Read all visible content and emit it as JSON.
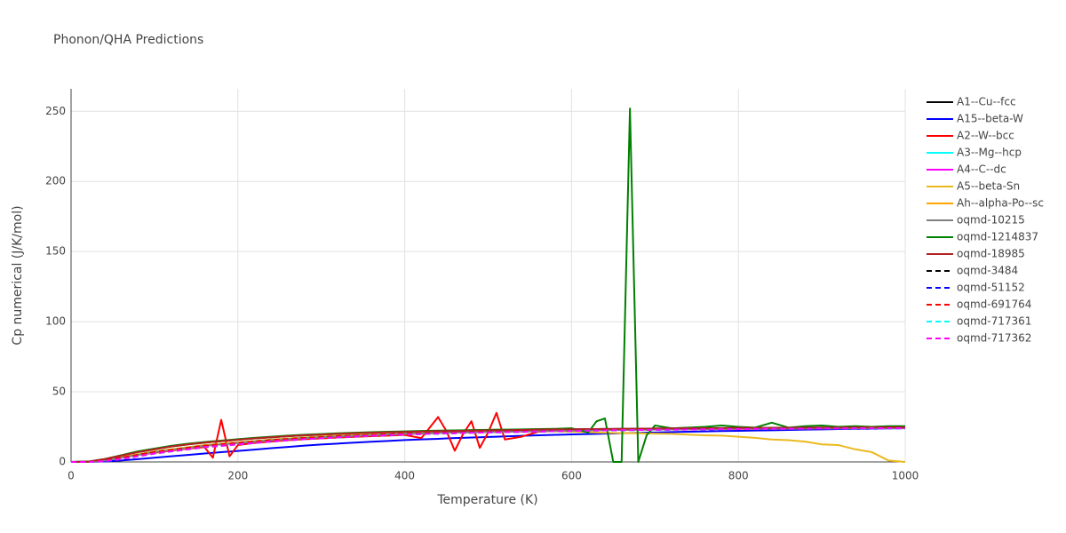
{
  "chart_data": {
    "type": "line",
    "title": "Phonon/QHA Predictions",
    "x_label": "Temperature (K)",
    "y_label": "Cp numerical (J/K/mol)",
    "xlim": [
      0,
      1000
    ],
    "ylim": [
      0,
      266
    ],
    "xticks": [
      0,
      200,
      400,
      600,
      800,
      1000
    ],
    "yticks": [
      0,
      50,
      100,
      150,
      200,
      250
    ],
    "grid": true,
    "x": [
      0,
      20,
      40,
      60,
      80,
      100,
      120,
      140,
      160,
      170,
      180,
      190,
      200,
      220,
      240,
      260,
      280,
      300,
      320,
      340,
      360,
      380,
      400,
      420,
      440,
      450,
      460,
      470,
      480,
      490,
      500,
      510,
      520,
      540,
      560,
      580,
      600,
      620,
      630,
      640,
      650,
      660,
      670,
      680,
      690,
      700,
      720,
      740,
      760,
      780,
      800,
      820,
      840,
      860,
      880,
      900,
      920,
      940,
      960,
      980,
      1000
    ],
    "series": [
      {
        "name": "A1--Cu--fcc",
        "color": "#000000",
        "dash": false,
        "values": [
          0,
          0.2,
          2,
          4.5,
          7,
          9,
          11,
          12.5,
          13.8,
          14.3,
          14.8,
          15.3,
          15.8,
          16.8,
          17.6,
          18.4,
          19,
          19.5,
          20,
          20.4,
          20.8,
          21.1,
          21.4,
          21.7,
          21.9,
          22,
          22.1,
          22.2,
          22.3,
          22.4,
          22.5,
          22.6,
          22.6,
          22.8,
          23,
          23.1,
          23.2,
          23.4,
          23.4,
          23.5,
          23.5,
          23.6,
          23.6,
          23.7,
          23.7,
          23.8,
          23.9,
          24,
          24,
          24.1,
          24.2,
          24.2,
          24.3,
          24.4,
          24.4,
          24.5,
          24.5,
          24.6,
          24.6,
          24.7,
          24.7
        ]
      },
      {
        "name": "A15--beta-W",
        "color": "#0000ff",
        "dash": false,
        "values": [
          0,
          0,
          0.3,
          1,
          2,
          3,
          4,
          5,
          6,
          6.5,
          7,
          7.4,
          7.8,
          8.8,
          9.8,
          10.7,
          11.6,
          12.4,
          13.1,
          13.8,
          14.4,
          15,
          15.6,
          16.1,
          16.5,
          16.8,
          17,
          17.2,
          17.4,
          17.6,
          17.8,
          18,
          18.2,
          18.6,
          19,
          19.3,
          19.6,
          19.9,
          20,
          20.2,
          20.3,
          20.5,
          20.6,
          20.7,
          20.9,
          21,
          21.3,
          21.5,
          21.8,
          22,
          22.2,
          22.4,
          22.6,
          22.8,
          23,
          23.2,
          23.4,
          23.6,
          23.7,
          23.9,
          24
        ]
      },
      {
        "name": "A2--W--bcc",
        "color": "#ff0000",
        "dash": false,
        "values": [
          0,
          0,
          1,
          3,
          5,
          6.5,
          8,
          9.5,
          10.5,
          3,
          30,
          4,
          12,
          13.5,
          14.5,
          15.5,
          16.2,
          16.8,
          17.4,
          17.9,
          18.4,
          18.8,
          19.2,
          17,
          32,
          22,
          8,
          20,
          29,
          10,
          21,
          35,
          16,
          18,
          21.5,
          22,
          22.5,
          23,
          23,
          23.1,
          23.2,
          23.2,
          23.3,
          23.3,
          23.4,
          23.4,
          23.5,
          23.6,
          23.7,
          23.8,
          23.9,
          24,
          24,
          24.1,
          24.2,
          24.2,
          24.3,
          24.3,
          24.4,
          24.4,
          24.5
        ]
      },
      {
        "name": "A3--Mg--hcp",
        "color": "#00ffff",
        "dash": false,
        "values": [
          0,
          0,
          1,
          3,
          5,
          7,
          8.5,
          10,
          11.5,
          12,
          12.5,
          13,
          13.5,
          14.5,
          15.5,
          16.3,
          17,
          17.6,
          18.2,
          18.7,
          19.2,
          19.6,
          20,
          20.3,
          20.6,
          20.8,
          20.9,
          21,
          21.1,
          21.2,
          21.3,
          21.4,
          21.5,
          21.7,
          21.9,
          22.1,
          22.3,
          22.5,
          22.6,
          22.7,
          22.8,
          22.8,
          22.9,
          23,
          23,
          23.1,
          23.2,
          23.3,
          23.4,
          23.5,
          23.6,
          23.7,
          23.8,
          23.8,
          23.9,
          24,
          24,
          24.1,
          24.1,
          24.2,
          24.2
        ]
      },
      {
        "name": "A4--C--dc",
        "color": "#ff00ff",
        "dash": false,
        "values": [
          0,
          0,
          1,
          3,
          5,
          7,
          8.5,
          10,
          11.5,
          12,
          12.5,
          13,
          13.5,
          14.5,
          15.5,
          16.3,
          17,
          17.6,
          18.2,
          18.7,
          19.2,
          19.6,
          20,
          20.3,
          20.6,
          20.8,
          20.9,
          21,
          21.1,
          21.2,
          21.3,
          21.4,
          21.5,
          21.7,
          21.9,
          22.1,
          22.3,
          22.5,
          22.6,
          22.7,
          22.8,
          22.8,
          22.9,
          23,
          23,
          23.1,
          23.2,
          23.3,
          23.4,
          23.5,
          23.6,
          23.7,
          23.8,
          23.8,
          23.9,
          24,
          24,
          24.1,
          24.1,
          24.2,
          24.2
        ]
      },
      {
        "name": "A5--beta-Sn",
        "color": "#ebb91e",
        "dash": false,
        "values": [
          0,
          0,
          1.5,
          3.5,
          5.5,
          7.5,
          9,
          10.5,
          12,
          12.5,
          13,
          13.5,
          14,
          15,
          16,
          16.8,
          17.5,
          18.1,
          18.7,
          19.2,
          19.6,
          20,
          20.4,
          20.7,
          21,
          21.1,
          21.2,
          21.3,
          21.4,
          21.5,
          21.6,
          21.7,
          21.8,
          21.9,
          22,
          21.8,
          21.5,
          21.2,
          21,
          20.8,
          20.7,
          20.6,
          20.5,
          20.4,
          20.3,
          20.2,
          20,
          19.5,
          19,
          18.8,
          18,
          17.2,
          16,
          15.5,
          14.5,
          12.5,
          12,
          9,
          7,
          1,
          0
        ]
      },
      {
        "name": "Ah--alpha-Po--sc",
        "color": "#ffa500",
        "dash": false,
        "values": [
          0,
          0,
          1,
          3,
          5,
          7,
          8.5,
          10,
          11.5,
          12,
          12.5,
          13,
          13.5,
          14.5,
          15.5,
          16.3,
          17,
          17.6,
          18.2,
          18.7,
          19.2,
          19.6,
          20,
          20.3,
          20.6,
          20.8,
          20.9,
          21,
          21.1,
          21.2,
          21.3,
          21.4,
          21.5,
          21.7,
          21.9,
          22.1,
          22.3,
          22.5,
          22.6,
          22.7,
          22.8,
          22.8,
          22.9,
          23,
          23,
          23.1,
          23.2,
          23.3,
          23.4,
          23.5,
          23.6,
          23.7,
          23.8,
          23.8,
          23.9,
          24,
          24,
          24.1,
          24.1,
          24.2,
          24.2
        ]
      },
      {
        "name": "oqmd-10215",
        "color": "#808080",
        "dash": false,
        "values": [
          0,
          0,
          1,
          3,
          5,
          7,
          8.5,
          10,
          11.5,
          12,
          12.5,
          13,
          13.5,
          14.5,
          15.5,
          16.3,
          17,
          17.6,
          18.2,
          18.7,
          19.2,
          19.6,
          20,
          20.3,
          20.6,
          20.8,
          20.9,
          21,
          21.1,
          21.2,
          21.3,
          21.4,
          21.5,
          21.7,
          21.9,
          22.1,
          22.3,
          22.5,
          22.6,
          22.7,
          22.8,
          22.8,
          22.9,
          23,
          23,
          23.1,
          23.2,
          23.3,
          23.4,
          23.5,
          23.6,
          23.7,
          23.8,
          23.8,
          23.9,
          24,
          24,
          24.1,
          24.1,
          24.2,
          24.2
        ]
      },
      {
        "name": "oqmd-1214837",
        "color": "#008000",
        "dash": false,
        "values": [
          0,
          0.2,
          2,
          4.8,
          7.5,
          9.5,
          11.5,
          13,
          14.2,
          14.7,
          15.2,
          15.7,
          16.2,
          17.2,
          18,
          18.8,
          19.4,
          19.9,
          20.4,
          20.8,
          21.2,
          21.5,
          21.8,
          22.1,
          22.3,
          22.4,
          22.5,
          22.6,
          22.7,
          22.8,
          22.9,
          23,
          23,
          23.2,
          23.4,
          23.6,
          24,
          21,
          29,
          31,
          0,
          0,
          252,
          0,
          19,
          26,
          24,
          24.5,
          25,
          26,
          25,
          24.5,
          28,
          24.5,
          25.5,
          26,
          25,
          25.5,
          25,
          25.5,
          25.5
        ]
      },
      {
        "name": "oqmd-18985",
        "color": "#b22222",
        "dash": false,
        "values": [
          0,
          0.2,
          2,
          4.5,
          7,
          9,
          11,
          12.5,
          13.8,
          14.3,
          14.8,
          15.3,
          15.8,
          16.8,
          17.6,
          18.4,
          19,
          19.5,
          20,
          20.4,
          20.8,
          21.1,
          21.4,
          21.7,
          21.9,
          22,
          22.1,
          22.2,
          22.3,
          22.4,
          22.5,
          22.6,
          22.6,
          22.8,
          23,
          23.1,
          23.2,
          23.4,
          23.4,
          23.5,
          23.5,
          23.6,
          23.6,
          23.7,
          23.7,
          23.8,
          23.9,
          24,
          24,
          24.1,
          24.2,
          24.2,
          24.3,
          24.4,
          24.4,
          24.5,
          24.5,
          24.6,
          24.6,
          24.7,
          24.7
        ]
      },
      {
        "name": "oqmd-3484",
        "color": "#000000",
        "dash": true,
        "values": [
          0,
          0,
          1,
          3,
          5,
          7,
          8.5,
          10,
          11.5,
          12,
          12.5,
          13,
          13.5,
          14.5,
          15.5,
          16.3,
          17,
          17.6,
          18.2,
          18.7,
          19.2,
          19.6,
          20,
          20.3,
          20.6,
          20.8,
          20.9,
          21,
          21.1,
          21.2,
          21.3,
          21.4,
          21.5,
          21.7,
          21.9,
          22.1,
          22.3,
          22.5,
          22.6,
          22.7,
          22.8,
          22.8,
          22.9,
          23,
          23,
          23.1,
          23.2,
          23.3,
          23.4,
          23.5,
          23.6,
          23.7,
          23.8,
          23.8,
          23.9,
          24,
          24,
          24.1,
          24.1,
          24.2,
          24.2
        ]
      },
      {
        "name": "oqmd-51152",
        "color": "#0000ff",
        "dash": true,
        "values": [
          0,
          0,
          0.5,
          2,
          4,
          6,
          7.5,
          9,
          10.5,
          11,
          11.5,
          12,
          12.5,
          13.5,
          14.5,
          15.4,
          16.2,
          16.9,
          17.5,
          18.1,
          18.6,
          19.1,
          19.5,
          19.9,
          20.2,
          20.4,
          20.5,
          20.7,
          20.8,
          20.9,
          21,
          21.1,
          21.2,
          21.4,
          21.7,
          21.9,
          22.1,
          22.3,
          22.4,
          22.5,
          22.6,
          22.6,
          22.7,
          22.8,
          22.8,
          22.9,
          23,
          23.1,
          23.2,
          23.3,
          23.4,
          23.5,
          23.6,
          23.6,
          23.7,
          23.8,
          23.8,
          23.9,
          23.9,
          24,
          24
        ]
      },
      {
        "name": "oqmd-691764",
        "color": "#ff0000",
        "dash": true,
        "values": [
          0,
          0,
          1,
          3,
          5,
          7,
          8.5,
          10,
          11.5,
          12,
          12.5,
          13,
          13.5,
          14.5,
          15.5,
          16.3,
          17,
          17.6,
          18.2,
          18.7,
          19.2,
          19.6,
          20,
          20.3,
          20.6,
          20.8,
          20.9,
          21,
          21.1,
          21.2,
          21.3,
          21.4,
          21.5,
          21.7,
          21.9,
          22.1,
          22.3,
          22.5,
          22.6,
          22.7,
          22.8,
          22.8,
          22.9,
          23,
          23,
          23.1,
          23.2,
          23.3,
          23.4,
          23.5,
          23.6,
          23.7,
          23.8,
          23.8,
          23.9,
          24,
          24,
          24.1,
          24.1,
          24.2,
          24.2
        ]
      },
      {
        "name": "oqmd-717361",
        "color": "#00ffff",
        "dash": true,
        "values": [
          0,
          0,
          0.5,
          2,
          4,
          6,
          7.5,
          9,
          10.5,
          11,
          11.5,
          12,
          12.5,
          13.5,
          14.5,
          15.4,
          16.2,
          16.9,
          17.5,
          18.1,
          18.6,
          19.1,
          19.5,
          19.9,
          20.2,
          20.4,
          20.5,
          20.7,
          20.8,
          20.9,
          21,
          21.1,
          21.2,
          21.4,
          21.7,
          21.9,
          22.1,
          22.3,
          22.4,
          22.5,
          22.6,
          22.6,
          22.7,
          22.8,
          22.8,
          22.9,
          23,
          23.1,
          23.2,
          23.3,
          23.4,
          23.5,
          23.6,
          23.6,
          23.7,
          23.8,
          23.8,
          23.9,
          23.9,
          24,
          24
        ]
      },
      {
        "name": "oqmd-717362",
        "color": "#ff00ff",
        "dash": true,
        "values": [
          0,
          0,
          0.5,
          2,
          4,
          6,
          7.5,
          9,
          10.5,
          11,
          11.5,
          12,
          12.5,
          13.5,
          14.5,
          15.4,
          16.2,
          16.9,
          17.5,
          18.1,
          18.6,
          19.1,
          19.5,
          19.9,
          20.2,
          20.4,
          20.5,
          20.7,
          20.8,
          20.9,
          21,
          21.1,
          21.2,
          21.4,
          21.7,
          21.9,
          22.1,
          22.3,
          22.4,
          22.5,
          22.6,
          22.6,
          22.7,
          22.8,
          22.8,
          22.9,
          23,
          23.1,
          23.2,
          23.3,
          23.4,
          23.5,
          23.6,
          23.6,
          23.7,
          23.8,
          23.8,
          23.9,
          23.9,
          24,
          24
        ]
      }
    ]
  }
}
